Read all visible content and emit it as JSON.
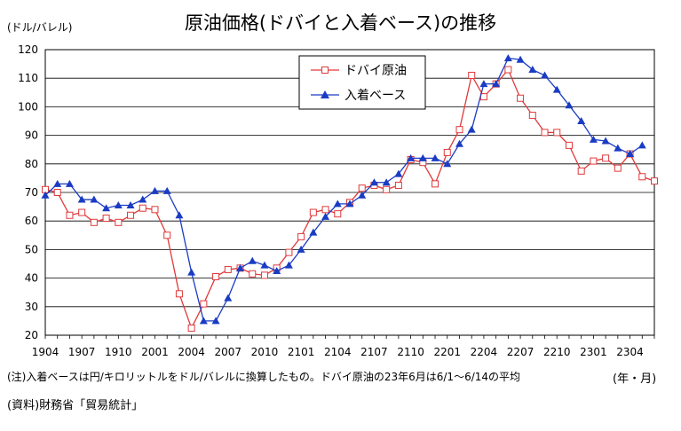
{
  "chart_data": {
    "type": "line",
    "title": "原油価格(ドバイと入着ベース)の推移",
    "ylabel": "(ドル/バレル)",
    "xlabel": "(年・月)",
    "ylim": [
      20,
      120
    ],
    "yticks": [
      20,
      30,
      40,
      50,
      60,
      70,
      80,
      90,
      100,
      110,
      120
    ],
    "x_tick_labels": [
      "1904",
      "1907",
      "1910",
      "2001",
      "2004",
      "2007",
      "2010",
      "2101",
      "2104",
      "2107",
      "2110",
      "2201",
      "2204",
      "2207",
      "2210",
      "2301",
      "2304"
    ],
    "x_months": [
      "1904",
      "1905",
      "1906",
      "1907",
      "1908",
      "1909",
      "1910",
      "1911",
      "1912",
      "2001",
      "2002",
      "2003",
      "2004",
      "2005",
      "2006",
      "2007",
      "2008",
      "2009",
      "2010",
      "2011",
      "2012",
      "2101",
      "2102",
      "2103",
      "2104",
      "2105",
      "2106",
      "2107",
      "2108",
      "2109",
      "2110",
      "2111",
      "2112",
      "2201",
      "2202",
      "2203",
      "2204",
      "2205",
      "2206",
      "2207",
      "2208",
      "2209",
      "2210",
      "2211",
      "2212",
      "2301",
      "2302",
      "2303",
      "2304",
      "2305",
      "2306"
    ],
    "grid": true,
    "legend_position": "top-right-inside",
    "series": [
      {
        "name": "ドバイ原油",
        "color": "#e0393a",
        "marker": "hollow-square",
        "values": [
          71,
          70,
          62,
          63,
          59.5,
          61,
          59.5,
          62,
          64.5,
          64,
          55,
          34.5,
          22.5,
          31,
          40.5,
          43,
          43.5,
          41.5,
          41,
          43.5,
          49,
          54.5,
          63,
          64,
          62.5,
          66.5,
          71.5,
          72.5,
          71,
          72.5,
          81.5,
          80.5,
          73,
          84,
          92,
          111,
          103.5,
          108,
          113,
          103,
          97,
          91,
          91,
          86.5,
          77.5,
          81,
          82,
          78.5,
          83.5,
          75.5,
          74
        ]
      },
      {
        "name": "入着ベース",
        "color": "#1a3cc4",
        "marker": "filled-triangle",
        "values": [
          69,
          73,
          73,
          67.5,
          67.5,
          64.5,
          65.5,
          65.5,
          67.5,
          70.5,
          70.5,
          62,
          42,
          25,
          25,
          33,
          43.5,
          46,
          44.5,
          42.5,
          44.5,
          50,
          56,
          61.5,
          66,
          66,
          69,
          73.5,
          73.5,
          76.5,
          82,
          82,
          82,
          80,
          87,
          92,
          108,
          108,
          117,
          116.5,
          113,
          111,
          106,
          100.5,
          95,
          88.5,
          88,
          85.5,
          83.5,
          86.5,
          null
        ]
      }
    ]
  },
  "notes": {
    "note": "(注)入着ベースは円/キロリットルをドル/バレルに換算したもの。ドバイ原油の23年6月は6/1～6/14の平均",
    "source": "(資料)財務省「貿易統計」"
  }
}
